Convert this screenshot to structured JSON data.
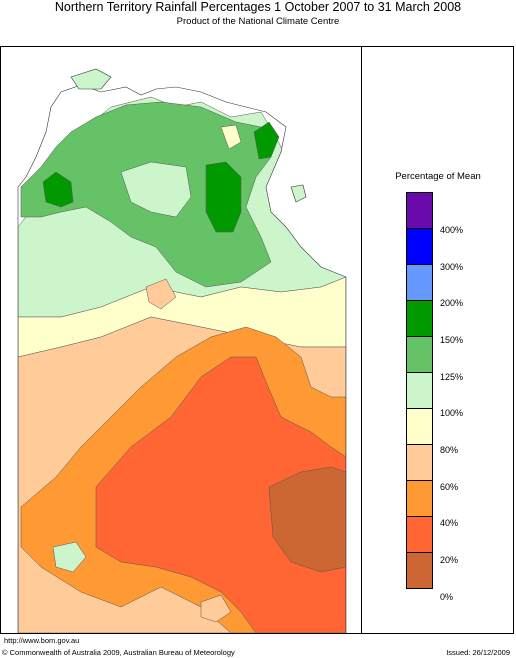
{
  "header": {
    "title": "Northern Territory Rainfall Percentages 1 October 2007 to 31 March 2008",
    "subtitle": "Product of the National Climate Centre"
  },
  "legend": {
    "title": "Percentage of Mean",
    "classes": [
      {
        "color": "#6a0aab"
      },
      {
        "color": "#0000ff"
      },
      {
        "color": "#6699ff"
      },
      {
        "color": "#009900"
      },
      {
        "color": "#66c266"
      },
      {
        "color": "#ccf5cc"
      },
      {
        "color": "#ffffcc"
      },
      {
        "color": "#ffcc99"
      },
      {
        "color": "#ff9933"
      },
      {
        "color": "#ff6633"
      },
      {
        "color": "#cc6633"
      }
    ],
    "ticks": [
      "400%",
      "300%",
      "200%",
      "150%",
      "125%",
      "100%",
      "80%",
      "60%",
      "40%",
      "20%",
      "0%"
    ]
  },
  "footer": {
    "url": "http://www.bom.gov.au",
    "copyright": "© Commonwealth of Australia 2009, Australian Bureau of Meteorology",
    "issued": "Issued: 26/12/2009"
  }
}
